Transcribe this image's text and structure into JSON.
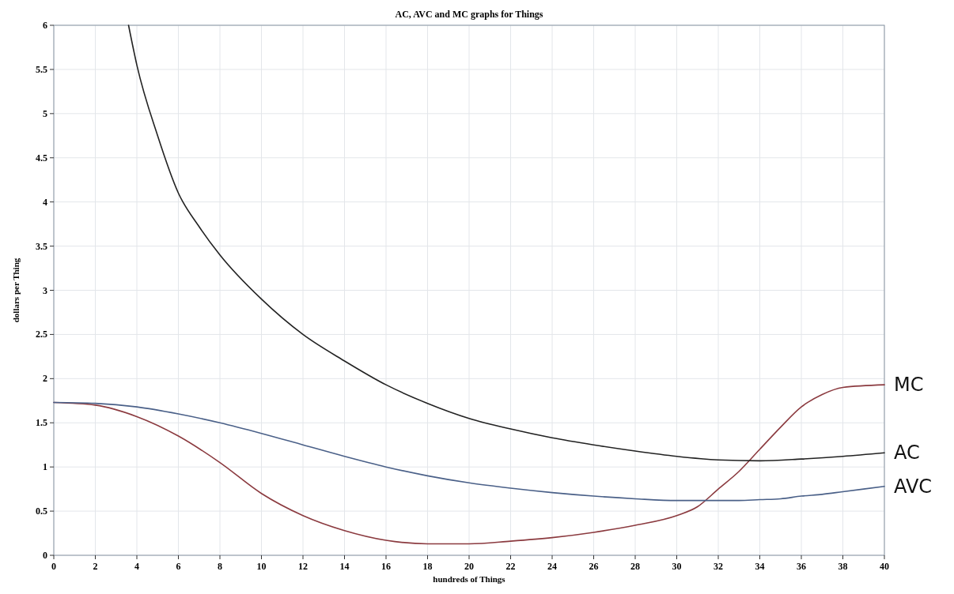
{
  "chart_data": {
    "type": "line",
    "title": "AC, AVC and MC graphs for Things",
    "xlabel": "hundreds of Things",
    "ylabel": "dollars per Thing",
    "x": [
      0,
      2,
      4,
      6,
      8,
      10,
      12,
      14,
      16,
      18,
      20,
      22,
      24,
      26,
      28,
      30,
      31,
      32,
      33,
      34,
      35,
      36,
      37,
      38,
      40
    ],
    "series": [
      {
        "name": "MC",
        "color": "#8b3a3f",
        "values": [
          1.73,
          1.7,
          1.57,
          1.35,
          1.05,
          0.7,
          0.45,
          0.28,
          0.17,
          0.13,
          0.13,
          0.16,
          0.2,
          0.26,
          0.34,
          0.45,
          0.55,
          0.75,
          0.95,
          1.2,
          1.45,
          1.68,
          1.82,
          1.9,
          1.93
        ]
      },
      {
        "name": "AC",
        "color": "#222222",
        "x": [
          3.6,
          4,
          5,
          6,
          7,
          8,
          10,
          12,
          14,
          16,
          18,
          20,
          22,
          24,
          26,
          28,
          30,
          32,
          34,
          36,
          38,
          40
        ],
        "values": [
          6,
          5.55,
          4.75,
          4.1,
          3.72,
          3.4,
          2.9,
          2.5,
          2.2,
          1.93,
          1.72,
          1.55,
          1.43,
          1.33,
          1.25,
          1.18,
          1.12,
          1.08,
          1.07,
          1.09,
          1.12,
          1.16
        ]
      },
      {
        "name": "AVC",
        "color": "#4a6088",
        "values": [
          1.73,
          1.72,
          1.68,
          1.6,
          1.5,
          1.38,
          1.25,
          1.12,
          1.0,
          0.9,
          0.82,
          0.76,
          0.71,
          0.67,
          0.64,
          0.62,
          0.62,
          0.62,
          0.62,
          0.63,
          0.64,
          0.67,
          0.69,
          0.72,
          0.78
        ]
      }
    ],
    "xlim": [
      0,
      40
    ],
    "xticks": [
      0,
      2,
      4,
      6,
      8,
      10,
      12,
      14,
      16,
      18,
      20,
      22,
      24,
      26,
      28,
      30,
      32,
      34,
      36,
      38,
      40
    ],
    "ylim": [
      0,
      6
    ],
    "yticks": [
      0,
      0.5,
      1,
      1.5,
      2,
      2.5,
      3,
      3.5,
      4,
      4.5,
      5,
      5.5,
      6
    ],
    "grid": true,
    "legend": false,
    "marker": "none",
    "line_style": "solid"
  }
}
